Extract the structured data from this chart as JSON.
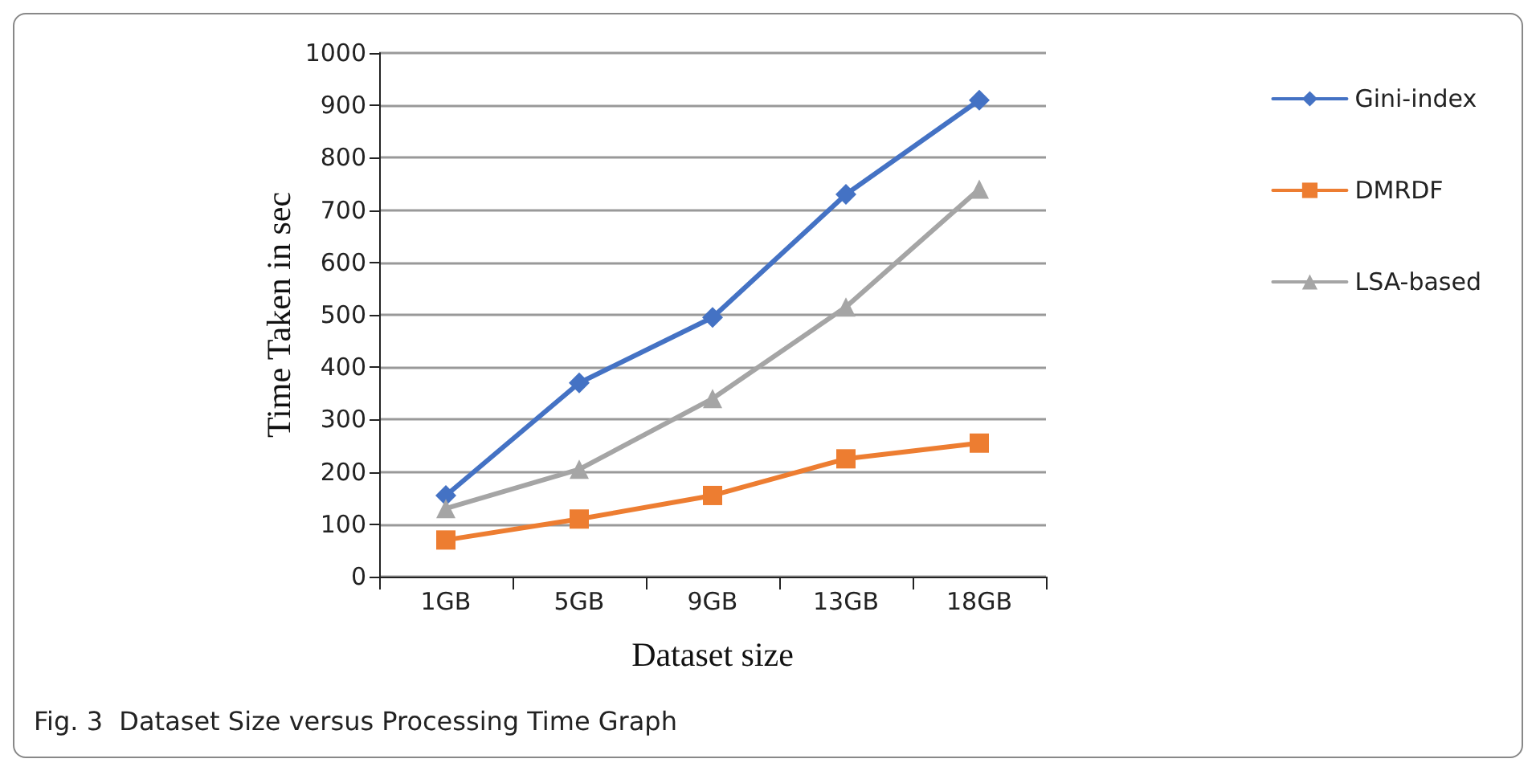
{
  "chart_data": {
    "type": "line",
    "xlabel": "Dataset size",
    "ylabel": "Time Taken in sec",
    "categories": [
      "1GB",
      "5GB",
      "9GB",
      "13GB",
      "18GB"
    ],
    "series": [
      {
        "name": "Gini-index",
        "color": "#4472c4",
        "marker": "diamond",
        "values": [
          155,
          370,
          495,
          730,
          910
        ]
      },
      {
        "name": "DMRDF",
        "color": "#ed7d31",
        "marker": "square",
        "values": [
          70,
          110,
          155,
          225,
          255
        ]
      },
      {
        "name": "LSA-based",
        "color": "#a5a5a5",
        "marker": "triangle",
        "values": [
          130,
          205,
          340,
          515,
          740
        ]
      }
    ],
    "ylim": [
      0,
      1000
    ],
    "yticks": [
      0,
      100,
      200,
      300,
      400,
      500,
      600,
      700,
      800,
      900,
      1000
    ],
    "grid": "y",
    "legend": "right",
    "line_style": "solid",
    "annotations": [
      "Fig. 3  Dataset Size versus Processing Time Graph"
    ]
  }
}
